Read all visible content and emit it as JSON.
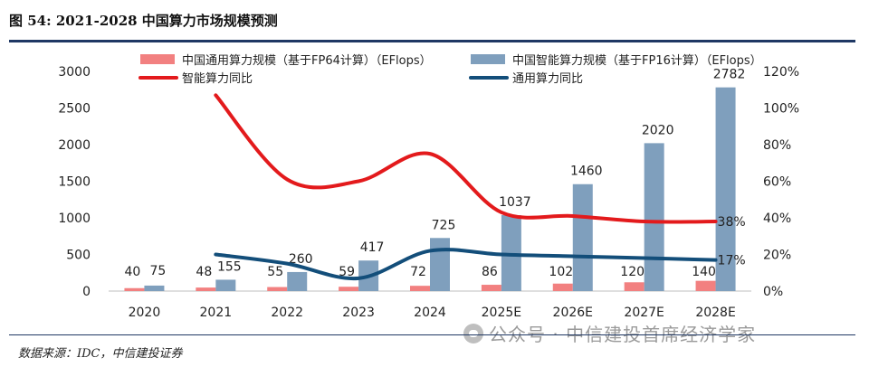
{
  "header": {
    "title": "图 54: 2021-2028 中国算力市场规模预测"
  },
  "footer": {
    "source": "数据来源：IDC，中信建投证券",
    "watermark": "公众号 · 中信建投首席经济学家"
  },
  "chart_data": {
    "type": "bar",
    "categories": [
      "2020",
      "2021",
      "2022",
      "2023",
      "2024",
      "2025E",
      "2026E",
      "2027E",
      "2028E"
    ],
    "series": [
      {
        "name": "中国通用算力规模（基于FP64计算）（EFlops）",
        "type": "bar",
        "axis": "left",
        "color": "#f28080",
        "values": [
          40,
          48,
          55,
          59,
          72,
          86,
          102,
          120,
          140
        ]
      },
      {
        "name": "中国智能算力规模（基于FP16计算）（EFlops）",
        "type": "bar",
        "axis": "left",
        "color": "#7f9fbd",
        "values": [
          75,
          155,
          260,
          417,
          725,
          1037,
          1460,
          2020,
          2782
        ]
      },
      {
        "name": "智能算力同比",
        "type": "line",
        "axis": "right",
        "color": "#e31a1c",
        "values": [
          null,
          107,
          61,
          60,
          75,
          43,
          41,
          38,
          38
        ]
      },
      {
        "name": "通用算力同比",
        "type": "line",
        "axis": "right",
        "color": "#134e7a",
        "values": [
          null,
          20,
          15,
          7,
          22,
          20,
          19,
          18,
          17
        ]
      }
    ],
    "line_end_labels": [
      "38%",
      "17%"
    ],
    "left_axis": {
      "ylim": [
        0,
        3000
      ],
      "ticks": [
        "0",
        "500",
        "1000",
        "1500",
        "2000",
        "2500",
        "3000"
      ]
    },
    "right_axis": {
      "ylim": [
        0,
        120
      ],
      "ticks": [
        "0%",
        "20%",
        "40%",
        "60%",
        "80%",
        "100%",
        "120%"
      ]
    },
    "grid": false,
    "legend_position": "top"
  }
}
